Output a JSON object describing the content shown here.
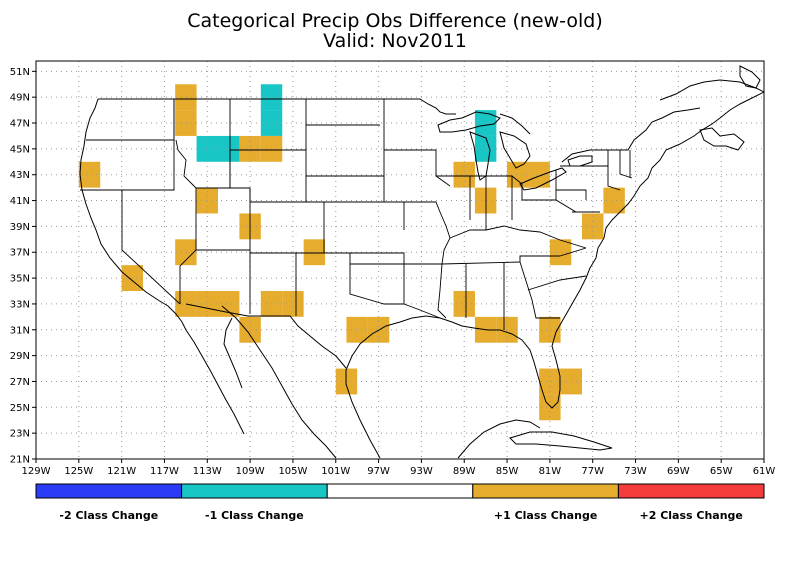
{
  "title_line1": "Categorical Precip Obs Difference (new-old)",
  "title_line2": "Valid: Nov2011",
  "lat_ticks": [
    "21N",
    "23N",
    "25N",
    "27N",
    "29N",
    "31N",
    "33N",
    "35N",
    "37N",
    "39N",
    "41N",
    "43N",
    "45N",
    "47N",
    "49N",
    "51N"
  ],
  "lon_ticks": [
    "129W",
    "125W",
    "121W",
    "117W",
    "113W",
    "109W",
    "105W",
    "101W",
    "97W",
    "93W",
    "89W",
    "85W",
    "81W",
    "77W",
    "73W",
    "69W",
    "65W",
    "61W"
  ],
  "colors": {
    "minus2": "#2a3cf5",
    "minus1": "#19c6c6",
    "zero": "#ffffff",
    "plus1": "#e6ac2e",
    "plus2": "#f53c3c"
  },
  "legend": [
    {
      "label": "-2 Class Change",
      "color": "#2a3cf5"
    },
    {
      "label": "-1 Class Change",
      "color": "#19c6c6"
    },
    {
      "label": "",
      "color": "#ffffff"
    },
    {
      "label": "+1 Class Change",
      "color": "#e6ac2e"
    },
    {
      "label": "+2 Class Change",
      "color": "#f53c3c"
    }
  ],
  "cells": [
    {
      "lon": -115,
      "lat": 47,
      "cls": 1
    },
    {
      "lon": -115,
      "lat": 49,
      "cls": 1
    },
    {
      "lon": -124,
      "lat": 43,
      "cls": 1
    },
    {
      "lon": -113,
      "lat": 45,
      "cls": -1
    },
    {
      "lon": -111,
      "lat": 45,
      "cls": -1
    },
    {
      "lon": -107,
      "lat": 49,
      "cls": -1
    },
    {
      "lon": -107,
      "lat": 47,
      "cls": -1
    },
    {
      "lon": -109,
      "lat": 45,
      "cls": 1
    },
    {
      "lon": -107,
      "lat": 45,
      "cls": 1
    },
    {
      "lon": -113,
      "lat": 41,
      "cls": 1
    },
    {
      "lon": -109,
      "lat": 39,
      "cls": 1
    },
    {
      "lon": -115,
      "lat": 37,
      "cls": 1
    },
    {
      "lon": -103,
      "lat": 37,
      "cls": 1
    },
    {
      "lon": -120,
      "lat": 35,
      "cls": 1
    },
    {
      "lon": -115,
      "lat": 33,
      "cls": 1
    },
    {
      "lon": -113,
      "lat": 33,
      "cls": 1
    },
    {
      "lon": -111,
      "lat": 33,
      "cls": 1
    },
    {
      "lon": -107,
      "lat": 33,
      "cls": 1
    },
    {
      "lon": -105,
      "lat": 33,
      "cls": 1
    },
    {
      "lon": -109,
      "lat": 31,
      "cls": 1
    },
    {
      "lon": -99,
      "lat": 31,
      "cls": 1
    },
    {
      "lon": -97,
      "lat": 31,
      "cls": 1
    },
    {
      "lon": -100,
      "lat": 27,
      "cls": 1
    },
    {
      "lon": -89,
      "lat": 43,
      "cls": 1
    },
    {
      "lon": -87,
      "lat": 47,
      "cls": -1
    },
    {
      "lon": -87,
      "lat": 45,
      "cls": -1
    },
    {
      "lon": -87,
      "lat": 41,
      "cls": 1
    },
    {
      "lon": -84,
      "lat": 43,
      "cls": 1
    },
    {
      "lon": -82,
      "lat": 43,
      "cls": 1
    },
    {
      "lon": -75,
      "lat": 41,
      "cls": 1
    },
    {
      "lon": -77,
      "lat": 39,
      "cls": 1
    },
    {
      "lon": -80,
      "lat": 37,
      "cls": 1
    },
    {
      "lon": -89,
      "lat": 33,
      "cls": 1
    },
    {
      "lon": -87,
      "lat": 31,
      "cls": 1
    },
    {
      "lon": -85,
      "lat": 31,
      "cls": 1
    },
    {
      "lon": -81,
      "lat": 31,
      "cls": 1
    },
    {
      "lon": -81,
      "lat": 27,
      "cls": 1
    },
    {
      "lon": -79,
      "lat": 27,
      "cls": 1
    },
    {
      "lon": -81,
      "lat": 25,
      "cls": 1
    }
  ]
}
